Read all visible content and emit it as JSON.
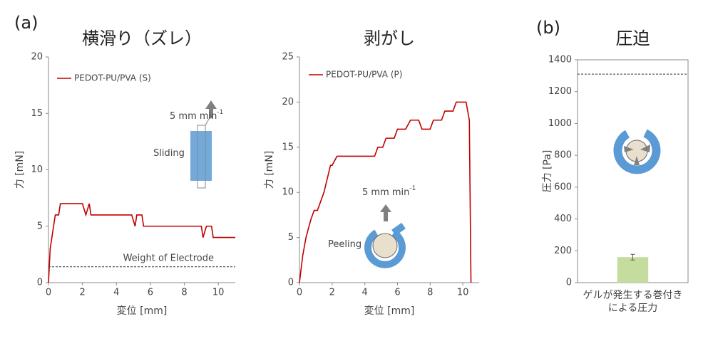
{
  "chart_data": [
    {
      "type": "line",
      "panel_label": "(a)",
      "title": "横滑り（ズレ）",
      "xlabel": "変位 [mm]",
      "ylabel": "力 [mN]",
      "xlim": [
        0,
        11
      ],
      "xticks": [
        0,
        2,
        4,
        6,
        8,
        10
      ],
      "ylim": [
        0,
        20
      ],
      "yticks": [
        0,
        5,
        10,
        15,
        20
      ],
      "series": [
        {
          "name": "PEDOT-PU/PVA (S)",
          "color": "#c00000",
          "x": [
            0,
            0.1,
            0.3,
            0.4,
            0.6,
            0.7,
            2.0,
            2.2,
            2.4,
            2.5,
            4.9,
            5.1,
            5.2,
            5.5,
            5.6,
            9.0,
            9.1,
            9.3,
            9.6,
            9.7,
            11
          ],
          "values": [
            0,
            3,
            5,
            6,
            6,
            7,
            7,
            6,
            7,
            6,
            6,
            5,
            6,
            6,
            5,
            5,
            4,
            5,
            5,
            4,
            4
          ]
        }
      ],
      "hline": {
        "value": 1.4,
        "label": "Weight of Electrode"
      },
      "annotations": [
        {
          "text": "5 mm min",
          "sup": "-1"
        },
        {
          "text": "Sliding"
        }
      ]
    },
    {
      "type": "line",
      "title": "剥がし",
      "xlabel": "変位 [mm]",
      "ylabel": "力 [mN]",
      "xlim": [
        0,
        11
      ],
      "xticks": [
        0,
        2,
        4,
        6,
        8,
        10
      ],
      "ylim": [
        0,
        25
      ],
      "yticks": [
        0,
        5,
        10,
        15,
        20,
        25
      ],
      "series": [
        {
          "name": "PEDOT-PU/PVA (P)",
          "color": "#c00000",
          "x": [
            0,
            0.2,
            0.4,
            0.7,
            0.9,
            1.1,
            1.5,
            1.9,
            2.0,
            2.3,
            4.6,
            4.8,
            5.1,
            5.3,
            5.8,
            6.0,
            6.5,
            6.8,
            7.3,
            7.5,
            8.0,
            8.2,
            8.7,
            8.9,
            9.4,
            9.6,
            10.2,
            10.4,
            10.5
          ],
          "values": [
            0,
            3,
            5,
            7,
            8,
            8,
            10,
            13,
            13,
            14,
            14,
            15,
            15,
            16,
            16,
            17,
            17,
            18,
            18,
            17,
            17,
            18,
            18,
            19,
            19,
            20,
            20,
            18,
            0
          ]
        }
      ],
      "annotations": [
        {
          "text": "5 mm min",
          "sup": "-1"
        },
        {
          "text": "Peeling"
        }
      ]
    },
    {
      "type": "bar",
      "panel_label": "(b)",
      "title": "圧迫",
      "ylabel": "圧力 [Pa]",
      "categories": [
        "ゲルが発生する巻付き\nによる圧力"
      ],
      "values": [
        160
      ],
      "errors": [
        18
      ],
      "color": "#c5dc9f",
      "ylim": [
        0,
        1400
      ],
      "yticks": [
        0,
        200,
        400,
        600,
        800,
        1000,
        1200,
        1400
      ],
      "hline": {
        "value": 1310
      }
    }
  ]
}
